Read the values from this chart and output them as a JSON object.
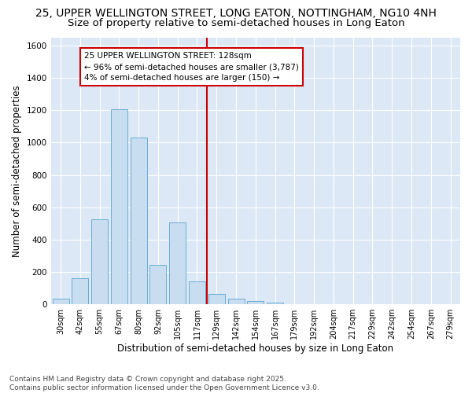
{
  "title": "25, UPPER WELLINGTON STREET, LONG EATON, NOTTINGHAM, NG10 4NH",
  "subtitle": "Size of property relative to semi-detached houses in Long Eaton",
  "xlabel": "Distribution of semi-detached houses by size in Long Eaton",
  "ylabel": "Number of semi-detached properties",
  "footnote": "Contains HM Land Registry data © Crown copyright and database right 2025.\nContains public sector information licensed under the Open Government Licence v3.0.",
  "bar_labels": [
    "30sqm",
    "42sqm",
    "55sqm",
    "67sqm",
    "80sqm",
    "92sqm",
    "105sqm",
    "117sqm",
    "129sqm",
    "142sqm",
    "154sqm",
    "167sqm",
    "179sqm",
    "192sqm",
    "204sqm",
    "217sqm",
    "229sqm",
    "242sqm",
    "254sqm",
    "267sqm",
    "279sqm"
  ],
  "bar_values": [
    35,
    162,
    527,
    1207,
    1030,
    245,
    505,
    140,
    65,
    37,
    20,
    10,
    0,
    0,
    0,
    0,
    0,
    0,
    0,
    0,
    0
  ],
  "bar_color": "#c9ddf0",
  "bar_edge_color": "#6aaed6",
  "vline_color": "#cc0000",
  "annotation_text": "25 UPPER WELLINGTON STREET: 128sqm\n← 96% of semi-detached houses are smaller (3,787)\n4% of semi-detached houses are larger (150) →",
  "annotation_box_color": "#ffffff",
  "annotation_box_edge": "#cc0000",
  "ylim": [
    0,
    1650
  ],
  "yticks": [
    0,
    200,
    400,
    600,
    800,
    1000,
    1200,
    1400,
    1600
  ],
  "plot_bg_color": "#dce8f5",
  "fig_bg_color": "#ffffff",
  "grid_color": "#ffffff",
  "title_fontsize": 10,
  "subtitle_fontsize": 9.5,
  "axis_label_fontsize": 8.5,
  "tick_fontsize": 7,
  "footnote_fontsize": 6.5,
  "annotation_fontsize": 7.5
}
